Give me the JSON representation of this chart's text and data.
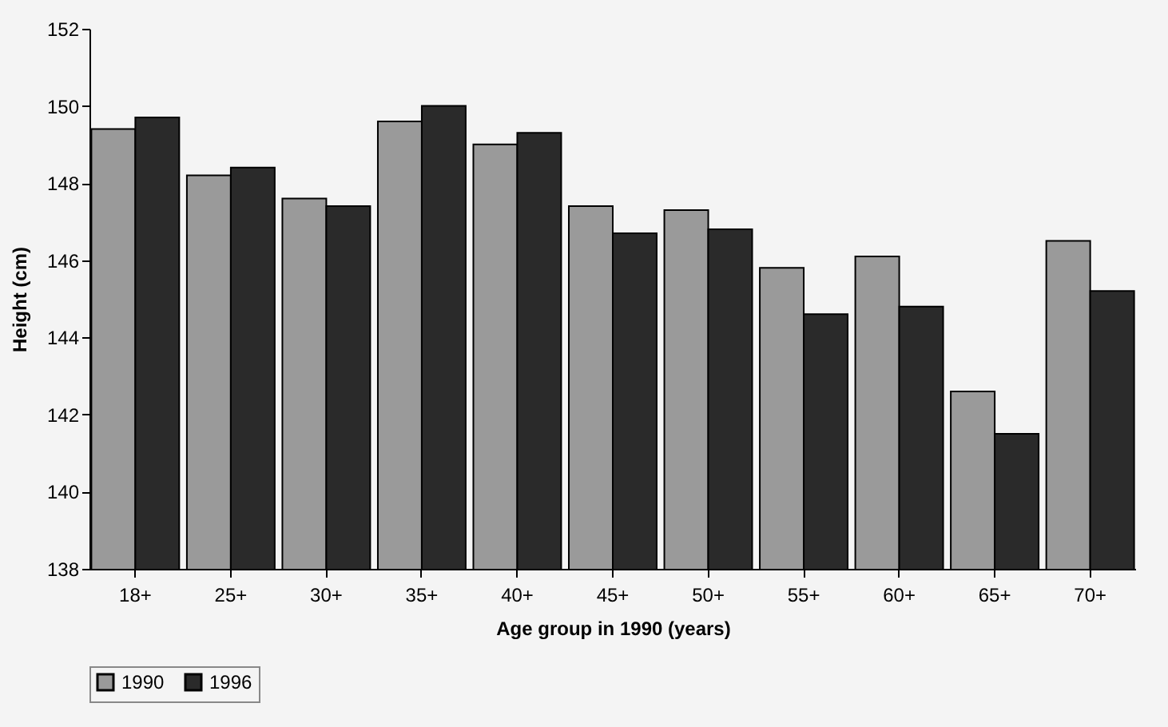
{
  "chart_data": {
    "type": "bar",
    "xlabel": "Age group in 1990 (years)",
    "ylabel": "Height (cm)",
    "categories": [
      "18+",
      "25+",
      "30+",
      "35+",
      "40+",
      "45+",
      "50+",
      "55+",
      "60+",
      "65+",
      "70+"
    ],
    "series": [
      {
        "name": "1990",
        "color": "#9a9a9a",
        "values": [
          149.4,
          148.2,
          147.6,
          149.6,
          149.0,
          147.4,
          147.3,
          145.8,
          146.1,
          142.6,
          146.5
        ]
      },
      {
        "name": "1996",
        "color": "#2a2a2a",
        "values": [
          149.7,
          148.4,
          147.4,
          150.0,
          149.3,
          146.7,
          146.8,
          144.6,
          144.8,
          141.5,
          145.2
        ]
      }
    ],
    "ylim": [
      138,
      152
    ],
    "yticks": [
      138,
      140,
      142,
      144,
      146,
      148,
      150,
      152
    ],
    "grid": false,
    "legend": "bottom"
  }
}
